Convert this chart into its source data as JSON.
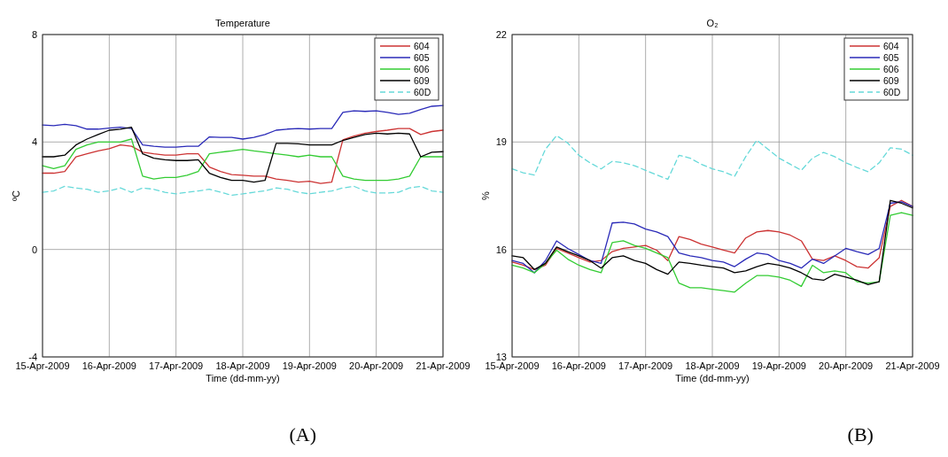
{
  "chart_data": [
    {
      "type": "line",
      "title": "Temperature",
      "xlabel": "Time (dd-mm-yy)",
      "ylabel": "ºC",
      "annotations": [
        "(A)"
      ],
      "x": [
        "2009-04-15T00:00",
        "2009-04-15T04:00",
        "2009-04-15T08:00",
        "2009-04-15T12:00",
        "2009-04-15T16:00",
        "2009-04-15T20:00",
        "2009-04-16T00:00",
        "2009-04-16T04:00",
        "2009-04-16T08:00",
        "2009-04-16T12:00",
        "2009-04-16T16:00",
        "2009-04-16T20:00",
        "2009-04-17T00:00",
        "2009-04-17T04:00",
        "2009-04-17T08:00",
        "2009-04-17T12:00",
        "2009-04-17T16:00",
        "2009-04-17T20:00",
        "2009-04-18T00:00",
        "2009-04-18T04:00",
        "2009-04-18T08:00",
        "2009-04-18T12:00",
        "2009-04-18T16:00",
        "2009-04-18T20:00",
        "2009-04-19T00:00",
        "2009-04-19T04:00",
        "2009-04-19T08:00",
        "2009-04-19T12:00",
        "2009-04-19T16:00",
        "2009-04-19T20:00",
        "2009-04-20T00:00",
        "2009-04-20T04:00",
        "2009-04-20T08:00",
        "2009-04-20T12:00",
        "2009-04-20T16:00",
        "2009-04-20T20:00",
        "2009-04-21T00:00"
      ],
      "series": [
        {
          "name": "604",
          "color": "#cc3333",
          "values": [
            2.84,
            2.84,
            2.9,
            3.45,
            3.56,
            3.67,
            3.75,
            3.89,
            3.84,
            3.62,
            3.56,
            3.51,
            3.51,
            3.56,
            3.56,
            3.07,
            2.9,
            2.79,
            2.76,
            2.73,
            2.73,
            2.62,
            2.57,
            2.51,
            2.54,
            2.46,
            2.51,
            4.08,
            4.22,
            4.33,
            4.39,
            4.44,
            4.5,
            4.5,
            4.28,
            4.39,
            4.44
          ]
        },
        {
          "name": "605",
          "color": "#2a2ab8",
          "values": [
            4.63,
            4.61,
            4.66,
            4.61,
            4.48,
            4.48,
            4.52,
            4.55,
            4.5,
            3.89,
            3.84,
            3.81,
            3.81,
            3.84,
            3.84,
            4.19,
            4.17,
            4.17,
            4.11,
            4.17,
            4.28,
            4.44,
            4.48,
            4.5,
            4.48,
            4.5,
            4.5,
            5.1,
            5.16,
            5.14,
            5.16,
            5.1,
            5.03,
            5.07,
            5.21,
            5.33,
            5.36
          ]
        },
        {
          "name": "606",
          "color": "#33cc33",
          "values": [
            3.12,
            3.01,
            3.12,
            3.73,
            3.89,
            4.0,
            4.0,
            4.0,
            4.11,
            2.73,
            2.62,
            2.68,
            2.68,
            2.76,
            2.9,
            3.56,
            3.62,
            3.67,
            3.73,
            3.67,
            3.62,
            3.56,
            3.51,
            3.45,
            3.51,
            3.45,
            3.45,
            2.73,
            2.62,
            2.57,
            2.57,
            2.57,
            2.62,
            2.73,
            3.45,
            3.45,
            3.45
          ]
        },
        {
          "name": "609",
          "color": "#000000",
          "values": [
            3.45,
            3.45,
            3.51,
            3.89,
            4.11,
            4.28,
            4.44,
            4.48,
            4.55,
            3.56,
            3.4,
            3.34,
            3.31,
            3.31,
            3.34,
            2.84,
            2.68,
            2.57,
            2.57,
            2.51,
            2.57,
            3.95,
            3.95,
            3.93,
            3.89,
            3.89,
            3.89,
            4.06,
            4.17,
            4.28,
            4.33,
            4.3,
            4.33,
            4.3,
            3.45,
            3.62,
            3.64
          ]
        },
        {
          "name": "60D",
          "color": "#66d9d9",
          "line_style": "dashed",
          "values": [
            2.13,
            2.18,
            2.35,
            2.29,
            2.24,
            2.13,
            2.18,
            2.29,
            2.13,
            2.29,
            2.24,
            2.13,
            2.07,
            2.13,
            2.18,
            2.24,
            2.13,
            2.02,
            2.07,
            2.13,
            2.18,
            2.29,
            2.24,
            2.13,
            2.07,
            2.13,
            2.18,
            2.29,
            2.35,
            2.18,
            2.1,
            2.1,
            2.13,
            2.29,
            2.35,
            2.18,
            2.13
          ]
        }
      ],
      "xlim": [
        "2009-04-15",
        "2009-04-21"
      ],
      "xticks": [
        {
          "value": "2009-04-15",
          "label": "15-Apr-2009"
        },
        {
          "value": "2009-04-16",
          "label": "16-Apr-2009"
        },
        {
          "value": "2009-04-17",
          "label": "17-Apr-2009"
        },
        {
          "value": "2009-04-18",
          "label": "18-Apr-2009"
        },
        {
          "value": "2009-04-19",
          "label": "19-Apr-2009"
        },
        {
          "value": "2009-04-20",
          "label": "20-Apr-2009"
        },
        {
          "value": "2009-04-21",
          "label": "21-Apr-2009"
        }
      ],
      "ylim": [
        -4,
        8
      ],
      "yticks": [
        -4,
        0,
        4,
        8
      ],
      "grid": true,
      "legend": "top right"
    },
    {
      "type": "line",
      "title": "O₂",
      "xlabel": "Time (dd-mm-yy)",
      "ylabel": "%",
      "annotations": [
        "(B)"
      ],
      "x": [
        "2009-04-15T00:00",
        "2009-04-15T04:00",
        "2009-04-15T08:00",
        "2009-04-15T12:00",
        "2009-04-15T16:00",
        "2009-04-15T20:00",
        "2009-04-16T00:00",
        "2009-04-16T04:00",
        "2009-04-16T08:00",
        "2009-04-16T12:00",
        "2009-04-16T16:00",
        "2009-04-16T20:00",
        "2009-04-17T00:00",
        "2009-04-17T04:00",
        "2009-04-17T08:00",
        "2009-04-17T12:00",
        "2009-04-17T16:00",
        "2009-04-17T20:00",
        "2009-04-18T00:00",
        "2009-04-18T04:00",
        "2009-04-18T08:00",
        "2009-04-18T12:00",
        "2009-04-18T16:00",
        "2009-04-18T20:00",
        "2009-04-19T00:00",
        "2009-04-19T04:00",
        "2009-04-19T08:00",
        "2009-04-19T12:00",
        "2009-04-19T16:00",
        "2009-04-19T20:00",
        "2009-04-20T00:00",
        "2009-04-20T04:00",
        "2009-04-20T08:00",
        "2009-04-20T12:00",
        "2009-04-20T16:00",
        "2009-04-20T20:00",
        "2009-04-21T00:00"
      ],
      "series": [
        {
          "name": "604",
          "color": "#cc3333",
          "values": [
            15.65,
            15.56,
            15.44,
            15.56,
            16.03,
            15.9,
            15.77,
            15.65,
            15.69,
            15.94,
            16.03,
            16.07,
            16.11,
            15.98,
            15.69,
            16.36,
            16.28,
            16.15,
            16.07,
            15.98,
            15.9,
            16.32,
            16.49,
            16.53,
            16.49,
            16.4,
            16.24,
            15.73,
            15.69,
            15.82,
            15.69,
            15.52,
            15.48,
            15.77,
            17.2,
            17.37,
            17.2
          ]
        },
        {
          "name": "605",
          "color": "#2a2ab8",
          "values": [
            15.69,
            15.61,
            15.35,
            15.69,
            16.24,
            16.03,
            15.86,
            15.69,
            15.61,
            16.74,
            16.76,
            16.71,
            16.57,
            16.49,
            16.36,
            15.9,
            15.82,
            15.77,
            15.69,
            15.65,
            15.52,
            15.73,
            15.9,
            15.86,
            15.69,
            15.61,
            15.48,
            15.73,
            15.61,
            15.82,
            16.03,
            15.94,
            15.86,
            16.03,
            17.29,
            17.33,
            17.2
          ]
        },
        {
          "name": "606",
          "color": "#33cc33",
          "values": [
            15.56,
            15.48,
            15.35,
            15.61,
            15.98,
            15.73,
            15.56,
            15.44,
            15.35,
            16.19,
            16.24,
            16.11,
            16.03,
            15.9,
            15.77,
            15.06,
            14.93,
            14.93,
            14.89,
            14.85,
            14.81,
            15.06,
            15.27,
            15.27,
            15.23,
            15.14,
            14.97,
            15.56,
            15.35,
            15.4,
            15.35,
            15.1,
            15.06,
            15.1,
            16.95,
            17.03,
            16.95
          ]
        },
        {
          "name": "609",
          "color": "#000000",
          "values": [
            15.82,
            15.77,
            15.44,
            15.61,
            16.07,
            15.94,
            15.82,
            15.69,
            15.48,
            15.77,
            15.82,
            15.69,
            15.61,
            15.44,
            15.31,
            15.65,
            15.61,
            15.56,
            15.52,
            15.48,
            15.35,
            15.4,
            15.52,
            15.61,
            15.56,
            15.48,
            15.35,
            15.18,
            15.14,
            15.31,
            15.23,
            15.14,
            15.02,
            15.1,
            17.37,
            17.29,
            17.16
          ]
        },
        {
          "name": "60D",
          "color": "#66d9d9",
          "line_style": "dashed",
          "values": [
            18.25,
            18.14,
            18.08,
            18.8,
            19.18,
            18.97,
            18.63,
            18.42,
            18.25,
            18.46,
            18.42,
            18.34,
            18.21,
            18.08,
            17.96,
            18.63,
            18.55,
            18.38,
            18.25,
            18.17,
            18.04,
            18.59,
            19.05,
            18.8,
            18.55,
            18.38,
            18.21,
            18.55,
            18.71,
            18.59,
            18.42,
            18.29,
            18.17,
            18.42,
            18.84,
            18.8,
            18.63
          ]
        }
      ],
      "xlim": [
        "2009-04-15",
        "2009-04-21"
      ],
      "xticks": [
        {
          "value": "2009-04-15",
          "label": "15-Apr-2009"
        },
        {
          "value": "2009-04-16",
          "label": "16-Apr-2009"
        },
        {
          "value": "2009-04-17",
          "label": "17-Apr-2009"
        },
        {
          "value": "2009-04-18",
          "label": "18-Apr-2009"
        },
        {
          "value": "2009-04-19",
          "label": "19-Apr-2009"
        },
        {
          "value": "2009-04-20",
          "label": "20-Apr-2009"
        },
        {
          "value": "2009-04-21",
          "label": "21-Apr-2009"
        }
      ],
      "ylim": [
        13,
        22
      ],
      "yticks": [
        13,
        16,
        19,
        22
      ],
      "grid": true,
      "legend": "top right"
    }
  ]
}
